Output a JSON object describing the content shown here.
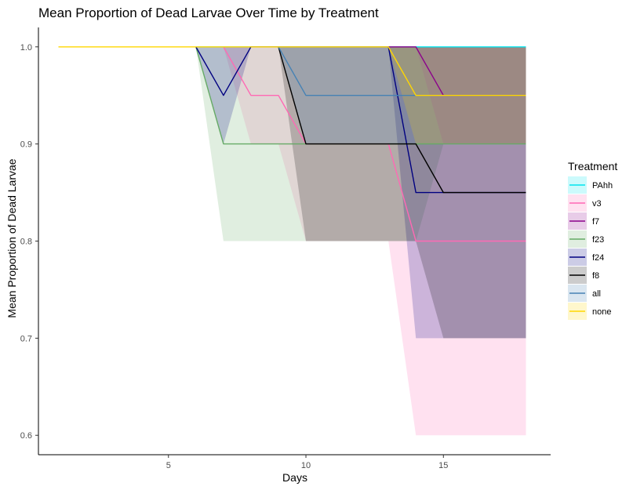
{
  "chart_data": {
    "type": "line",
    "title": "Mean Proportion of Dead Larvae Over Time by Treatment",
    "xlabel": "Days",
    "ylabel": "Mean Proportion of Dead Larvae",
    "xlim": [
      0.3,
      18.9
    ],
    "ylim": [
      0.58,
      1.02
    ],
    "x_ticks": [
      5,
      10,
      15
    ],
    "y_ticks": [
      0.6,
      0.7,
      0.8,
      0.9,
      1.0
    ],
    "y_tick_labels": [
      "0.6",
      "0.7",
      "0.8",
      "0.9",
      "1.0"
    ],
    "grid": false,
    "legend_position": "right",
    "legend_title": "Treatment",
    "ribbon_opacity": 0.2,
    "series": [
      {
        "name": "PAhh",
        "color": "#00E5EE",
        "x": [
          6,
          7,
          8,
          9,
          10,
          11,
          12,
          13,
          14,
          15,
          16,
          17,
          18
        ],
        "y": [
          1.0,
          1.0,
          1.0,
          1.0,
          1.0,
          1.0,
          1.0,
          1.0,
          1.0,
          1.0,
          1.0,
          1.0,
          1.0
        ],
        "ymin": [
          1.0,
          1.0,
          1.0,
          1.0,
          1.0,
          1.0,
          1.0,
          1.0,
          1.0,
          1.0,
          1.0,
          1.0,
          1.0
        ],
        "ymax": [
          1.0,
          1.0,
          1.0,
          1.0,
          1.0,
          1.0,
          1.0,
          1.0,
          1.0,
          1.0,
          1.0,
          1.0,
          1.0
        ]
      },
      {
        "name": "v3",
        "color": "#FF69B4",
        "x": [
          7,
          8,
          9,
          10,
          11,
          12,
          13,
          14,
          15,
          16,
          17,
          18
        ],
        "y": [
          1.0,
          0.95,
          0.95,
          0.9,
          0.9,
          0.9,
          0.9,
          0.8,
          0.8,
          0.8,
          0.8,
          0.8
        ],
        "ymin": [
          1.0,
          0.9,
          0.9,
          0.8,
          0.8,
          0.8,
          0.8,
          0.6,
          0.6,
          0.6,
          0.6,
          0.6
        ],
        "ymax": [
          1.0,
          1.0,
          1.0,
          1.0,
          1.0,
          1.0,
          1.0,
          1.0,
          1.0,
          1.0,
          1.0,
          1.0
        ]
      },
      {
        "name": "f7",
        "color": "#8B008B",
        "x": [
          13,
          14,
          15,
          16,
          17,
          18
        ],
        "y": [
          1.0,
          1.0,
          0.95,
          0.95,
          0.95,
          0.95
        ],
        "ymin": [
          1.0,
          1.0,
          0.9,
          0.9,
          0.9,
          0.9
        ],
        "ymax": [
          1.0,
          1.0,
          1.0,
          1.0,
          1.0,
          1.0
        ]
      },
      {
        "name": "f23",
        "color": "#66AA66",
        "x": [
          6,
          7,
          8,
          9,
          10,
          11,
          12,
          13,
          14,
          15,
          16,
          17,
          18
        ],
        "y": [
          1.0,
          0.9,
          0.9,
          0.9,
          0.9,
          0.9,
          0.9,
          0.9,
          0.9,
          0.9,
          0.9,
          0.9,
          0.9
        ],
        "ymin": [
          1.0,
          0.8,
          0.8,
          0.8,
          0.8,
          0.8,
          0.8,
          0.8,
          0.8,
          0.9,
          0.9,
          0.9,
          0.9
        ],
        "ymax": [
          1.0,
          1.0,
          1.0,
          1.0,
          1.0,
          1.0,
          1.0,
          1.0,
          1.0,
          0.9,
          0.9,
          0.9,
          0.9
        ]
      },
      {
        "name": "f24",
        "color": "#000080",
        "x": [
          6,
          7,
          8,
          9,
          10,
          11,
          12,
          13,
          14,
          15,
          16,
          17,
          18
        ],
        "y": [
          1.0,
          0.95,
          1.0,
          1.0,
          1.0,
          1.0,
          1.0,
          1.0,
          0.85,
          0.85,
          0.85,
          0.85,
          0.85
        ],
        "ymin": [
          1.0,
          0.9,
          1.0,
          1.0,
          1.0,
          1.0,
          1.0,
          1.0,
          0.7,
          0.7,
          0.7,
          0.7,
          0.7
        ],
        "ymax": [
          1.0,
          1.0,
          1.0,
          1.0,
          1.0,
          1.0,
          1.0,
          1.0,
          1.0,
          1.0,
          1.0,
          1.0,
          1.0
        ]
      },
      {
        "name": "f8",
        "color": "#000000",
        "x": [
          9,
          10,
          11,
          12,
          13,
          14,
          15,
          16,
          17,
          18
        ],
        "y": [
          1.0,
          0.9,
          0.9,
          0.9,
          0.9,
          0.9,
          0.85,
          0.85,
          0.85,
          0.85
        ],
        "ymin": [
          1.0,
          0.8,
          0.8,
          0.8,
          0.8,
          0.8,
          0.7,
          0.7,
          0.7,
          0.7
        ],
        "ymax": [
          1.0,
          1.0,
          1.0,
          1.0,
          1.0,
          1.0,
          1.0,
          1.0,
          1.0,
          1.0
        ]
      },
      {
        "name": "all",
        "color": "#4682B4",
        "x": [
          9,
          10,
          11,
          12,
          13,
          14,
          15,
          16,
          17,
          18
        ],
        "y": [
          1.0,
          0.95,
          0.95,
          0.95,
          0.95,
          0.95,
          0.95,
          0.95,
          0.95,
          0.95
        ],
        "ymin": [
          1.0,
          0.9,
          0.9,
          0.9,
          0.9,
          0.9,
          0.9,
          0.9,
          0.9,
          0.9
        ],
        "ymax": [
          1.0,
          1.0,
          1.0,
          1.0,
          1.0,
          1.0,
          1.0,
          1.0,
          1.0,
          1.0
        ]
      },
      {
        "name": "none",
        "color": "#FFD700",
        "x": [
          1,
          2,
          3,
          4,
          5,
          6,
          7,
          8,
          9,
          10,
          11,
          12,
          13,
          14,
          15,
          16,
          17,
          18
        ],
        "y": [
          1.0,
          1.0,
          1.0,
          1.0,
          1.0,
          1.0,
          1.0,
          1.0,
          1.0,
          1.0,
          1.0,
          1.0,
          1.0,
          0.95,
          0.95,
          0.95,
          0.95,
          0.95
        ],
        "ymin": [
          1.0,
          1.0,
          1.0,
          1.0,
          1.0,
          1.0,
          1.0,
          1.0,
          1.0,
          1.0,
          1.0,
          1.0,
          1.0,
          0.9,
          0.9,
          0.9,
          0.9,
          0.9
        ],
        "ymax": [
          1.0,
          1.0,
          1.0,
          1.0,
          1.0,
          1.0,
          1.0,
          1.0,
          1.0,
          1.0,
          1.0,
          1.0,
          1.0,
          1.0,
          1.0,
          1.0,
          1.0,
          1.0
        ]
      }
    ]
  }
}
